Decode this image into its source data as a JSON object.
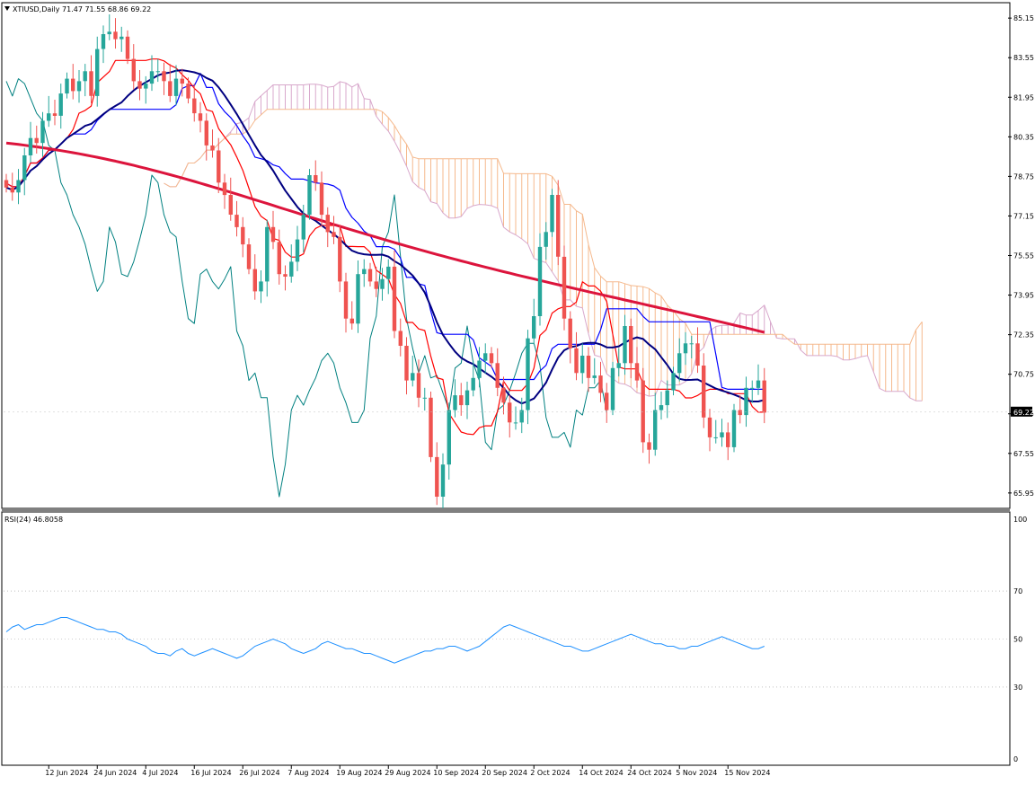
{
  "header": {
    "symbol_info": "XTIUSD,Daily  71.47 71.55 68.86 69.22",
    "current_price_tag": "69.22"
  },
  "rsi_panel": {
    "label": "RSI(24) 46.8058",
    "levels": [
      70,
      50,
      30
    ],
    "axis_labels": [
      "100",
      "70",
      "50",
      "30",
      "0"
    ]
  },
  "colors": {
    "bull": "#26a69a",
    "bear": "#ef5350",
    "ma_long": "#dc143c",
    "ma_mid": "#000080",
    "ichimoku_base": "#0000ff",
    "ichimoku_conversion": "#ff0000",
    "chikou": "#008080",
    "cloud_a": "#d8a8cc",
    "cloud_b": "#f5b98d",
    "rsi_line": "#1e90ff"
  },
  "chart_data": [
    {
      "type": "candlestick",
      "title": "XTIUSD,Daily",
      "ylim": [
        65.4,
        85.7
      ],
      "y_ticks": [
        "85.15",
        "83.55",
        "81.95",
        "80.35",
        "78.75",
        "77.15",
        "75.55",
        "73.95",
        "72.35",
        "70.75",
        "69.15",
        "67.55",
        "65.95"
      ],
      "x_ticks": [
        "12 Jun 2024",
        "24 Jun 2024",
        "4 Jul 2024",
        "16 Jul 2024",
        "26 Jul 2024",
        "7 Aug 2024",
        "19 Aug 2024",
        "29 Aug 2024",
        "10 Sep 2024",
        "20 Sep 2024",
        "2 Oct 2024",
        "14 Oct 2024",
        "24 Oct 2024",
        "5 Nov 2024",
        "15 Nov 2024"
      ],
      "x": [
        "2024-06-03",
        "2024-06-04",
        "2024-06-05",
        "2024-06-06",
        "2024-06-07",
        "2024-06-10",
        "2024-06-11",
        "2024-06-12",
        "2024-06-13",
        "2024-06-14",
        "2024-06-17",
        "2024-06-18",
        "2024-06-19",
        "2024-06-20",
        "2024-06-21",
        "2024-06-24",
        "2024-06-25",
        "2024-06-26",
        "2024-06-27",
        "2024-06-28",
        "2024-07-01",
        "2024-07-02",
        "2024-07-03",
        "2024-07-04",
        "2024-07-05",
        "2024-07-08",
        "2024-07-09",
        "2024-07-10",
        "2024-07-11",
        "2024-07-12",
        "2024-07-15",
        "2024-07-16",
        "2024-07-17",
        "2024-07-18",
        "2024-07-19",
        "2024-07-22",
        "2024-07-23",
        "2024-07-24",
        "2024-07-25",
        "2024-07-26",
        "2024-07-29",
        "2024-07-30",
        "2024-07-31",
        "2024-08-01",
        "2024-08-02",
        "2024-08-05",
        "2024-08-06",
        "2024-08-07",
        "2024-08-08",
        "2024-08-09",
        "2024-08-12",
        "2024-08-13",
        "2024-08-14",
        "2024-08-15",
        "2024-08-16",
        "2024-08-19",
        "2024-08-20",
        "2024-08-21",
        "2024-08-22",
        "2024-08-23",
        "2024-08-26",
        "2024-08-27",
        "2024-08-28",
        "2024-08-29",
        "2024-08-30",
        "2024-09-02",
        "2024-09-03",
        "2024-09-04",
        "2024-09-05",
        "2024-09-06",
        "2024-09-09",
        "2024-09-10",
        "2024-09-11",
        "2024-09-12",
        "2024-09-13",
        "2024-09-16",
        "2024-09-17",
        "2024-09-18",
        "2024-09-19",
        "2024-09-20",
        "2024-09-23",
        "2024-09-24",
        "2024-09-25",
        "2024-09-26",
        "2024-09-27",
        "2024-09-30",
        "2024-10-01",
        "2024-10-02",
        "2024-10-03",
        "2024-10-04",
        "2024-10-07",
        "2024-10-08",
        "2024-10-09",
        "2024-10-10",
        "2024-10-11",
        "2024-10-14",
        "2024-10-15",
        "2024-10-16",
        "2024-10-17",
        "2024-10-18",
        "2024-10-21",
        "2024-10-22",
        "2024-10-23",
        "2024-10-24",
        "2024-10-25",
        "2024-10-28",
        "2024-10-29",
        "2024-10-30",
        "2024-10-31",
        "2024-11-01",
        "2024-11-04",
        "2024-11-05",
        "2024-11-06",
        "2024-11-07",
        "2024-11-08",
        "2024-11-11",
        "2024-11-12",
        "2024-11-13",
        "2024-11-14",
        "2024-11-15",
        "2024-11-18",
        "2024-11-19",
        "2024-11-20",
        "2024-11-21",
        "2024-11-22",
        "2024-11-25"
      ],
      "ohlc_close": [
        78.3,
        78.1,
        78.6,
        79.6,
        80.3,
        80.1,
        81.0,
        81.3,
        81.2,
        82.1,
        82.7,
        82.2,
        82.6,
        83.0,
        82.0,
        83.9,
        84.5,
        84.6,
        84.3,
        84.4,
        83.5,
        82.6,
        82.3,
        82.5,
        83.0,
        83.0,
        82.6,
        82.0,
        82.7,
        82.5,
        81.9,
        81.3,
        81.0,
        80.0,
        79.8,
        78.5,
        78.0,
        77.2,
        76.7,
        76.0,
        75.0,
        74.1,
        74.5,
        76.7,
        76.1,
        74.8,
        74.7,
        75.3,
        76.2,
        77.2,
        78.8,
        78.5,
        77.2,
        76.5,
        76.3,
        74.5,
        73.0,
        72.8,
        74.8,
        75.0,
        74.5,
        74.2,
        74.6,
        75.1,
        72.5,
        71.9,
        70.5,
        70.8,
        69.8,
        69.8,
        67.4,
        65.8,
        67.1,
        69.3,
        69.9,
        69.5,
        70.1,
        70.6,
        71.3,
        71.6,
        71.2,
        70.2,
        69.6,
        68.8,
        68.8,
        69.3,
        72.2,
        73.1,
        75.9,
        76.5,
        78.0,
        75.5,
        73.0,
        71.8,
        70.8,
        71.5,
        70.6,
        70.7,
        70.0,
        69.3,
        71.0,
        71.2,
        72.7,
        71.2,
        70.5,
        68.0,
        67.7,
        69.3,
        69.5,
        70.1,
        70.8,
        71.6,
        72.0,
        72.0,
        71.1,
        69.0,
        68.2,
        68.2,
        68.4,
        67.8,
        69.3,
        69.1,
        70.2,
        70.2,
        70.5,
        69.2
      ],
      "series": [
        {
          "name": "RSI(24)",
          "panel": "rsi",
          "ylim": [
            0,
            100
          ],
          "values": [
            53,
            55,
            56,
            54,
            55,
            56,
            56,
            57,
            58,
            59,
            59,
            58,
            57,
            56,
            55,
            54,
            54,
            53,
            53,
            52,
            50,
            49,
            48,
            47,
            45,
            44,
            44,
            43,
            45,
            46,
            44,
            43,
            44,
            45,
            46,
            45,
            44,
            43,
            42,
            43,
            45,
            47,
            48,
            49,
            50,
            49,
            48,
            46,
            45,
            44,
            45,
            46,
            48,
            49,
            48,
            47,
            46,
            46,
            45,
            44,
            44,
            43,
            42,
            41,
            40,
            41,
            42,
            43,
            44,
            45,
            45,
            46,
            46,
            47,
            47,
            46,
            45,
            46,
            47,
            49,
            51,
            53,
            55,
            56,
            55,
            54,
            53,
            52,
            51,
            50,
            49,
            48,
            47,
            47,
            46,
            45,
            45,
            46,
            47,
            48,
            49,
            50,
            51,
            52,
            51,
            50,
            49,
            48,
            48,
            47,
            47,
            46,
            46,
            47,
            47,
            48,
            49,
            50,
            51,
            50,
            49,
            48,
            47,
            46,
            46,
            47
          ]
        }
      ],
      "current_price": 69.22
    }
  ]
}
